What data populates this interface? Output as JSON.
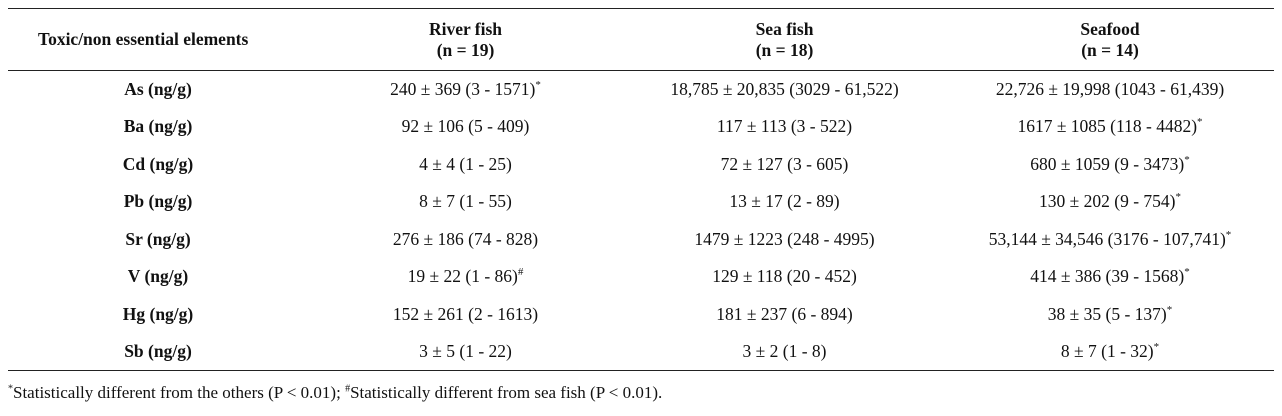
{
  "table": {
    "headers": [
      {
        "lines": [
          "Toxic/non essential elements"
        ]
      },
      {
        "lines": [
          "River fish",
          "(n = 19)"
        ]
      },
      {
        "lines": [
          "Sea fish",
          "(n = 18)"
        ]
      },
      {
        "lines": [
          "Seafood",
          "(n = 14)"
        ]
      }
    ],
    "rows": [
      {
        "element": "As (ng/g)",
        "cells": [
          {
            "value": "240 ± 369 (3 - 1571)",
            "mark": "*"
          },
          {
            "value": "18,785 ± 20,835 (3029 - 61,522)",
            "mark": ""
          },
          {
            "value": "22,726 ± 19,998 (1043 - 61,439)",
            "mark": ""
          }
        ]
      },
      {
        "element": "Ba (ng/g)",
        "cells": [
          {
            "value": "92 ± 106 (5 - 409)",
            "mark": ""
          },
          {
            "value": "117 ± 113 (3 - 522)",
            "mark": ""
          },
          {
            "value": "1617 ± 1085 (118 - 4482)",
            "mark": "*"
          }
        ]
      },
      {
        "element": "Cd (ng/g)",
        "cells": [
          {
            "value": "4 ± 4 (1 - 25)",
            "mark": ""
          },
          {
            "value": "72 ± 127 (3 - 605)",
            "mark": ""
          },
          {
            "value": "680 ± 1059 (9 - 3473)",
            "mark": "*"
          }
        ]
      },
      {
        "element": "Pb (ng/g)",
        "cells": [
          {
            "value": "8 ± 7 (1 - 55)",
            "mark": ""
          },
          {
            "value": "13 ± 17 (2 - 89)",
            "mark": ""
          },
          {
            "value": "130 ± 202 (9 - 754)",
            "mark": "*"
          }
        ]
      },
      {
        "element": "Sr (ng/g)",
        "cells": [
          {
            "value": "276 ± 186 (74 - 828)",
            "mark": ""
          },
          {
            "value": "1479 ± 1223 (248 - 4995)",
            "mark": ""
          },
          {
            "value": "53,144 ± 34,546 (3176 - 107,741)",
            "mark": "*"
          }
        ]
      },
      {
        "element": "V (ng/g)",
        "cells": [
          {
            "value": "19 ± 22 (1 - 86)",
            "mark": "#"
          },
          {
            "value": "129 ± 118 (20 - 452)",
            "mark": ""
          },
          {
            "value": "414 ± 386 (39 - 1568)",
            "mark": "*"
          }
        ]
      },
      {
        "element": "Hg (ng/g)",
        "cells": [
          {
            "value": "152 ± 261 (2 - 1613)",
            "mark": ""
          },
          {
            "value": "181 ± 237 (6 - 894)",
            "mark": ""
          },
          {
            "value": "38 ± 35 (5 - 137)",
            "mark": "*"
          }
        ]
      },
      {
        "element": "Sb (ng/g)",
        "cells": [
          {
            "value": "3 ± 5 (1 - 22)",
            "mark": ""
          },
          {
            "value": "3 ± 2 (1 - 8)",
            "mark": ""
          },
          {
            "value": "8 ± 7 (1 - 32)",
            "mark": "*"
          }
        ]
      }
    ]
  },
  "footnote": {
    "mark1": "*",
    "text1": "Statistically different from the others (P < 0.01); ",
    "mark2": "#",
    "text2": "Statistically different from sea fish (P < 0.01)."
  }
}
